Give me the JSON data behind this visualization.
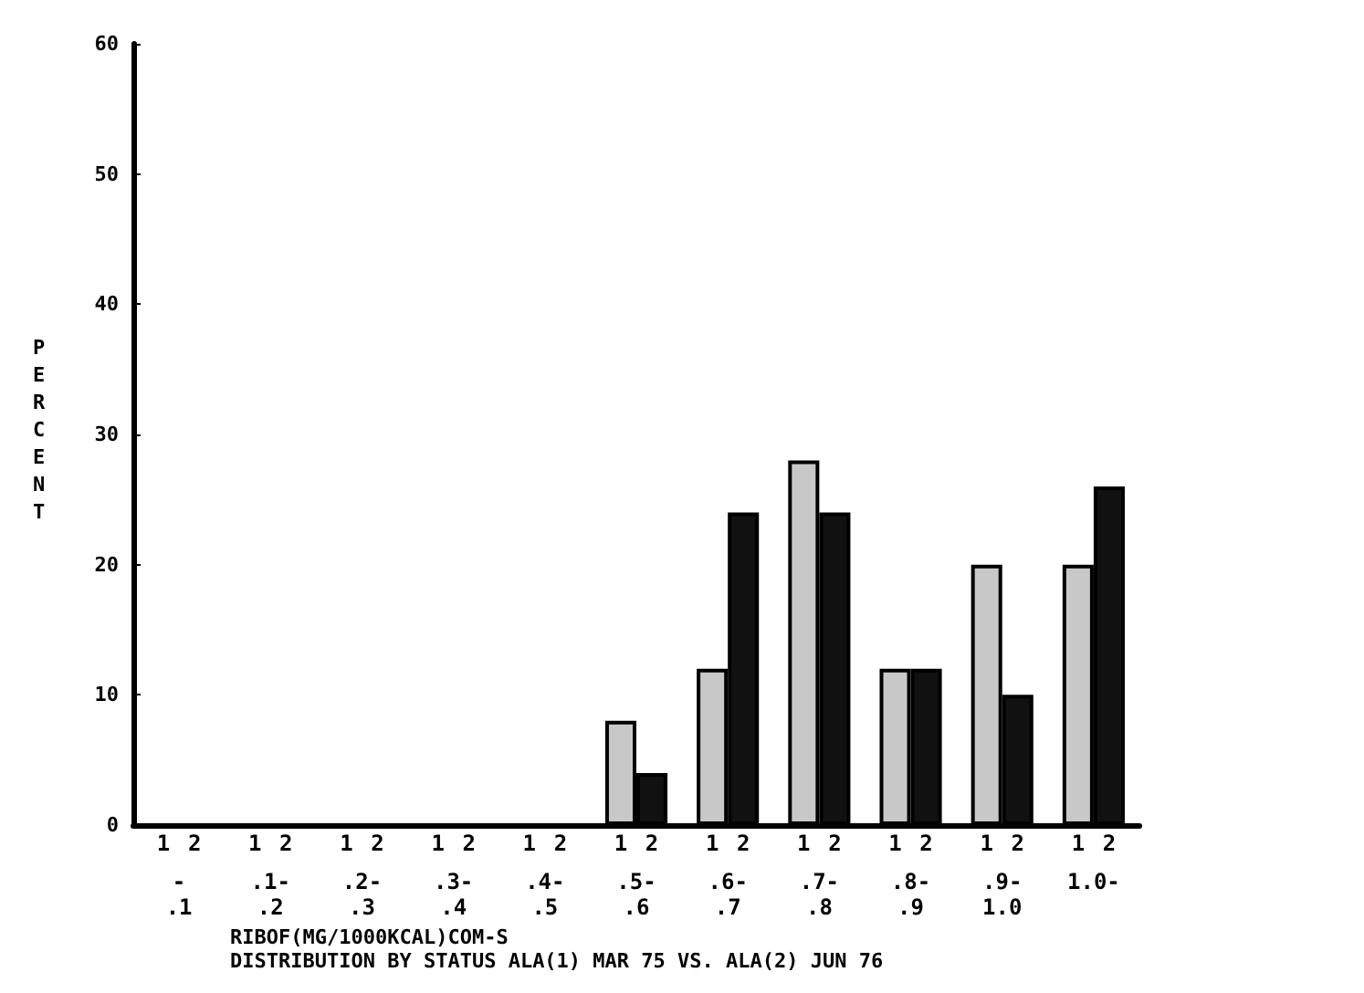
{
  "chart_data": {
    "type": "bar",
    "xlabel": "RIBOF(MG/1000KCAL)COM-S",
    "ylabel": "PERCENT",
    "annotations": [
      "DISTRIBUTION BY STATUS ALA(1) MAR 75 VS. ALA(2) JUN 76"
    ],
    "categories": [
      "-\n.1",
      ".1-\n.2",
      ".2-\n.3",
      ".3-\n.4",
      ".4-\n.5",
      ".5-\n.6",
      ".6-\n.7",
      ".7-\n.8",
      ".8-\n.9",
      ".9-\n1.0",
      "1.0-"
    ],
    "series": [
      {
        "name": "1",
        "color": "#c8c8c8",
        "values": [
          0,
          0,
          0,
          0,
          0,
          8,
          12,
          28,
          12,
          20,
          20
        ]
      },
      {
        "name": "2",
        "color": "#111111",
        "values": [
          0,
          0,
          0,
          0,
          0,
          4,
          24,
          24,
          12,
          10,
          26
        ]
      }
    ],
    "ylim": [
      0,
      60
    ],
    "yticks": [
      0,
      10,
      20,
      30,
      40,
      50,
      60
    ],
    "grid": false,
    "legend": false
  }
}
